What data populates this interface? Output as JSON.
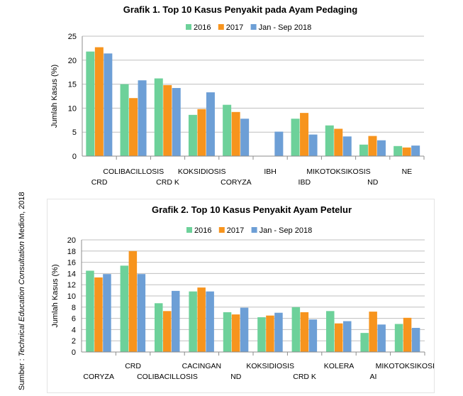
{
  "source_note_prefix": "Sumber : ",
  "source_note_italic": "Technical Education Consultation",
  "source_note_suffix": " Medion, 2018",
  "chart_data": [
    {
      "type": "bar",
      "title": "Grafik 1. Top 10 Kasus Penyakit pada Ayam Pedaging",
      "ylabel": "Jumlah Kasus (%)",
      "xlabel": "",
      "ylim": [
        0,
        25
      ],
      "yticks": [
        0,
        5,
        10,
        15,
        20,
        25
      ],
      "grid": true,
      "legend_position": "top",
      "categories": [
        "CRD",
        "COLIBACILLOSIS",
        "CRD K",
        "KOKSIDIOSIS",
        "CORYZA",
        "IBH",
        "IBD",
        "MIKOTOKSIKOSIS",
        "ND",
        "NE"
      ],
      "series": [
        {
          "name": "2016",
          "color": "#6dd19a",
          "values": [
            21.8,
            15.0,
            16.2,
            8.6,
            10.7,
            null,
            7.8,
            6.4,
            2.4,
            2.1
          ]
        },
        {
          "name": "2017",
          "color": "#f7941d",
          "values": [
            22.7,
            12.1,
            14.8,
            9.8,
            9.2,
            null,
            9.0,
            5.7,
            4.2,
            1.8
          ]
        },
        {
          "name": "Jan - Sep 2018",
          "color": "#6d9fd6",
          "values": [
            21.4,
            15.8,
            14.2,
            13.3,
            7.8,
            5.1,
            4.5,
            4.1,
            3.3,
            2.2
          ]
        }
      ]
    },
    {
      "type": "bar",
      "title": "Grafik 2. Top 10 Kasus Penyakit Ayam Petelur",
      "ylabel": "Jumlah Kasus (%)",
      "xlabel": "",
      "ylim": [
        0,
        20
      ],
      "yticks": [
        0,
        2,
        4,
        6,
        8,
        10,
        12,
        14,
        16,
        18,
        20
      ],
      "grid": true,
      "legend_position": "top",
      "categories": [
        "CORYZA",
        "CRD",
        "COLIBACILLOSIS",
        "CACINGAN",
        "ND",
        "KOKSIDIOSIS",
        "CRD K",
        "KOLERA",
        "AI",
        "MIKOTOKSIKOSIS"
      ],
      "series": [
        {
          "name": "2016",
          "color": "#6dd19a",
          "values": [
            14.5,
            15.4,
            8.7,
            10.8,
            7.1,
            6.2,
            8.0,
            7.3,
            3.4,
            5.0
          ]
        },
        {
          "name": "2017",
          "color": "#f7941d",
          "values": [
            13.3,
            18.0,
            7.3,
            11.5,
            6.7,
            6.5,
            7.1,
            5.1,
            7.2,
            6.1
          ]
        },
        {
          "name": "Jan - Sep 2018",
          "color": "#6d9fd6",
          "values": [
            13.9,
            13.9,
            10.9,
            10.8,
            7.9,
            7.0,
            5.8,
            5.5,
            4.9,
            4.3
          ]
        }
      ]
    }
  ]
}
